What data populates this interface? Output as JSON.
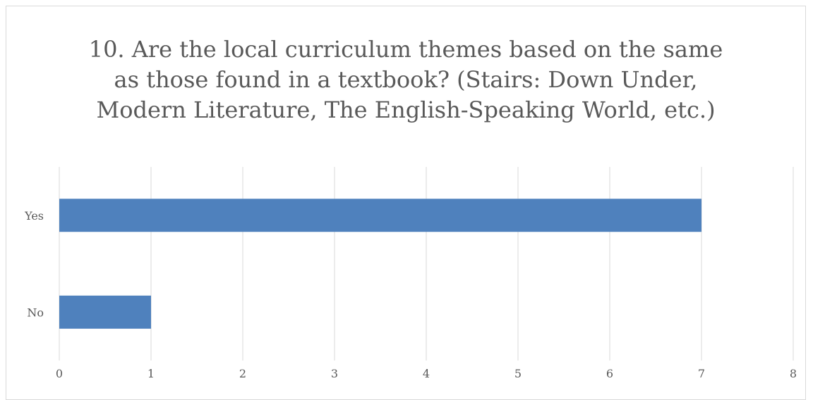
{
  "chart_data": {
    "type": "bar",
    "orientation": "horizontal",
    "title_lines": [
      "10. Are the local curriculum themes based on the same",
      "as those found in a textbook? (Stairs: Down Under,",
      "Modern Literature, The English-Speaking World, etc.)"
    ],
    "categories": [
      "Yes",
      "No"
    ],
    "values": [
      7,
      1
    ],
    "x_ticks": [
      "0",
      "1",
      "2",
      "3",
      "4",
      "5",
      "6",
      "7",
      "8"
    ],
    "xlim": [
      0,
      8
    ],
    "grid": true,
    "legend": "none",
    "bar_color": "#4f81bd",
    "grid_color": "#d9d9d9"
  }
}
